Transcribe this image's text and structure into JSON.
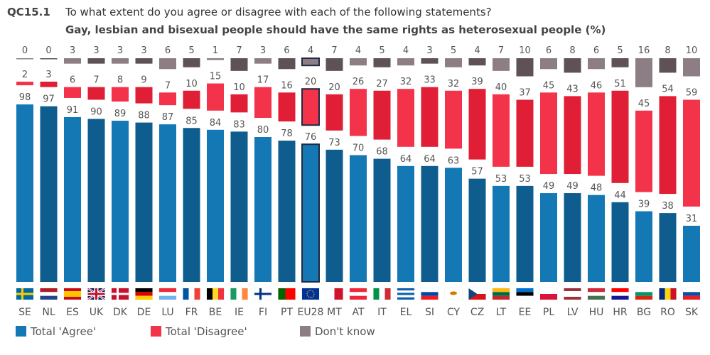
{
  "chart_data": {
    "type": "bar",
    "question_code": "QC15.1",
    "title": "To what extent do you agree or disagree with each of the following statements?",
    "subtitle": "Gay, lesbian and bisexual people should have the same rights as heterosexual people  (%)",
    "categories": [
      "SE",
      "NL",
      "ES",
      "UK",
      "DK",
      "DE",
      "LU",
      "FR",
      "BE",
      "IE",
      "FI",
      "PT",
      "EU28",
      "MT",
      "AT",
      "IT",
      "EL",
      "SI",
      "CY",
      "CZ",
      "LT",
      "EE",
      "PL",
      "LV",
      "HU",
      "HR",
      "BG",
      "RO",
      "SK"
    ],
    "highlight": "EU28",
    "series": [
      {
        "name": "Total 'Agree'",
        "values": [
          98,
          97,
          91,
          90,
          89,
          88,
          87,
          85,
          84,
          83,
          80,
          78,
          76,
          73,
          70,
          68,
          64,
          64,
          63,
          57,
          53,
          53,
          49,
          49,
          48,
          44,
          39,
          38,
          31
        ],
        "colors": [
          "#1378b4",
          "#0e5d8e"
        ]
      },
      {
        "name": "Total 'Disagree'",
        "values": [
          2,
          3,
          6,
          7,
          8,
          9,
          7,
          10,
          15,
          10,
          17,
          16,
          20,
          20,
          26,
          27,
          32,
          33,
          32,
          39,
          40,
          37,
          45,
          43,
          46,
          51,
          45,
          54,
          59
        ],
        "colors": [
          "#f2334a",
          "#e01f36"
        ]
      },
      {
        "name": "Don't know",
        "values": [
          0,
          0,
          3,
          3,
          3,
          3,
          6,
          5,
          1,
          7,
          3,
          6,
          4,
          7,
          4,
          5,
          4,
          3,
          5,
          4,
          7,
          10,
          6,
          8,
          6,
          5,
          16,
          8,
          10
        ],
        "colors": [
          "#8c7e84",
          "#5e5257"
        ]
      }
    ],
    "ylim": [
      0,
      100
    ],
    "legend": "bottom"
  }
}
